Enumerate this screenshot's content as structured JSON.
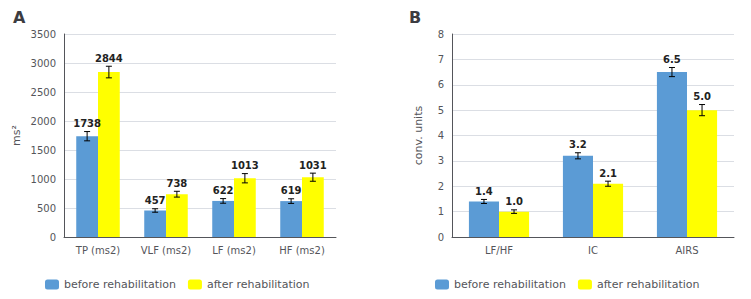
{
  "chart_data": [
    {
      "type": "bar",
      "title": "A",
      "categories": [
        "TP (ms2)",
        "VLF (ms2)",
        "LF (ms2)",
        "HF (ms2)"
      ],
      "series": [
        {
          "name": "before rehabilitation",
          "color": "#5B9BD5",
          "values": [
            1738,
            457,
            622,
            619
          ],
          "errors": [
            80,
            30,
            40,
            40
          ]
        },
        {
          "name": "after rehabilitation",
          "color": "#FFFF00",
          "values": [
            2844,
            738,
            1013,
            1031
          ],
          "errors": [
            100,
            50,
            80,
            70
          ]
        }
      ],
      "ylabel": "ms²",
      "ylim": [
        0,
        3500
      ],
      "yticks": [
        0,
        500,
        1000,
        1500,
        2000,
        2500,
        3000,
        3500
      ],
      "grid": true,
      "data_labels": true,
      "legend": "bottom"
    },
    {
      "type": "bar",
      "title": "B",
      "categories": [
        "LF/HF",
        "IC",
        "AIRS"
      ],
      "series": [
        {
          "name": "before rehabilitation",
          "color": "#5B9BD5",
          "values": [
            1.4,
            3.2,
            6.5
          ],
          "errors": [
            0.08,
            0.12,
            0.18
          ]
        },
        {
          "name": "after rehabilitation",
          "color": "#FFFF00",
          "values": [
            1.0,
            2.1,
            5.0
          ],
          "value_labels": [
            "1.0",
            "2.1",
            "5.0"
          ],
          "errors": [
            0.07,
            0.1,
            0.22
          ]
        }
      ],
      "ylabel": "conv. units",
      "ylim": [
        0,
        8
      ],
      "yticks": [
        0,
        1,
        2,
        3,
        4,
        5,
        6,
        7,
        8
      ],
      "grid": true,
      "data_labels": true,
      "legend": "bottom"
    }
  ]
}
